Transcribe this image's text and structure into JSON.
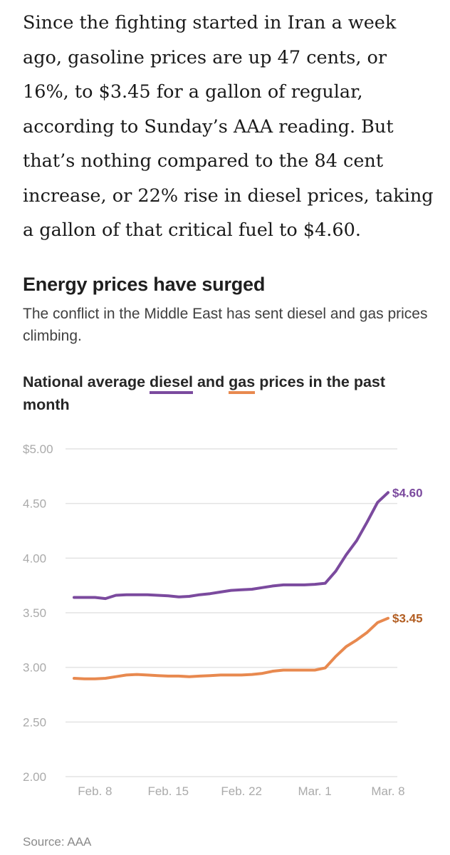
{
  "article": {
    "paragraph": "Since the fighting started in Iran a week ago, gasoline prices are up 47 cents, or 16%, to $3.45 for a gallon of regular, according to Sunday’s AAA reading. But that’s nothing compared to the 84 cent increase, or 22% rise in diesel prices, taking a gallon of that critical fuel to $4.60."
  },
  "chart": {
    "title": "Energy prices have surged",
    "subtitle": "The conflict in the Middle East has sent diesel and gas prices climbing.",
    "heading_part1": "National average ",
    "heading_diesel": "diesel",
    "heading_part2": " and ",
    "heading_gas": "gas",
    "heading_part3": " prices in the past month",
    "source": "Source: AAA"
  },
  "colors": {
    "diesel": "#7b4a9e",
    "gas": "#e8894f",
    "gas_label": "#b25e22",
    "grid": "#e3e3e3",
    "tick": "#aaaaaa"
  },
  "chart_data": {
    "type": "line",
    "x": [
      "Feb. 6",
      "Feb. 7",
      "Feb. 8",
      "Feb. 9",
      "Feb. 10",
      "Feb. 11",
      "Feb. 12",
      "Feb. 13",
      "Feb. 14",
      "Feb. 15",
      "Feb. 16",
      "Feb. 17",
      "Feb. 18",
      "Feb. 19",
      "Feb. 20",
      "Feb. 21",
      "Feb. 22",
      "Feb. 23",
      "Feb. 24",
      "Feb. 25",
      "Feb. 26",
      "Feb. 27",
      "Feb. 28",
      "Mar. 1",
      "Mar. 2",
      "Mar. 3",
      "Mar. 4",
      "Mar. 5",
      "Mar. 6",
      "Mar. 7",
      "Mar. 8"
    ],
    "xticks": [
      "Feb. 8",
      "Feb. 15",
      "Feb. 22",
      "Mar. 1",
      "Mar. 8"
    ],
    "yticks": [
      "$5.00",
      "4.50",
      "4.00",
      "3.50",
      "3.00",
      "2.50",
      "2.00"
    ],
    "ylim": [
      2.0,
      5.0
    ],
    "grid": true,
    "series": [
      {
        "name": "diesel",
        "end_label": "$4.60",
        "values": [
          3.64,
          3.64,
          3.64,
          3.63,
          3.66,
          3.665,
          3.665,
          3.665,
          3.66,
          3.655,
          3.645,
          3.65,
          3.665,
          3.675,
          3.69,
          3.705,
          3.71,
          3.715,
          3.73,
          3.745,
          3.755,
          3.755,
          3.755,
          3.76,
          3.77,
          3.88,
          4.03,
          4.16,
          4.33,
          4.51,
          4.6
        ]
      },
      {
        "name": "gas",
        "end_label": "$3.45",
        "values": [
          2.9,
          2.895,
          2.895,
          2.9,
          2.915,
          2.93,
          2.935,
          2.93,
          2.925,
          2.92,
          2.92,
          2.915,
          2.92,
          2.925,
          2.93,
          2.93,
          2.93,
          2.935,
          2.945,
          2.965,
          2.975,
          2.975,
          2.975,
          2.975,
          2.995,
          3.1,
          3.19,
          3.25,
          3.32,
          3.41,
          3.45
        ]
      }
    ]
  }
}
